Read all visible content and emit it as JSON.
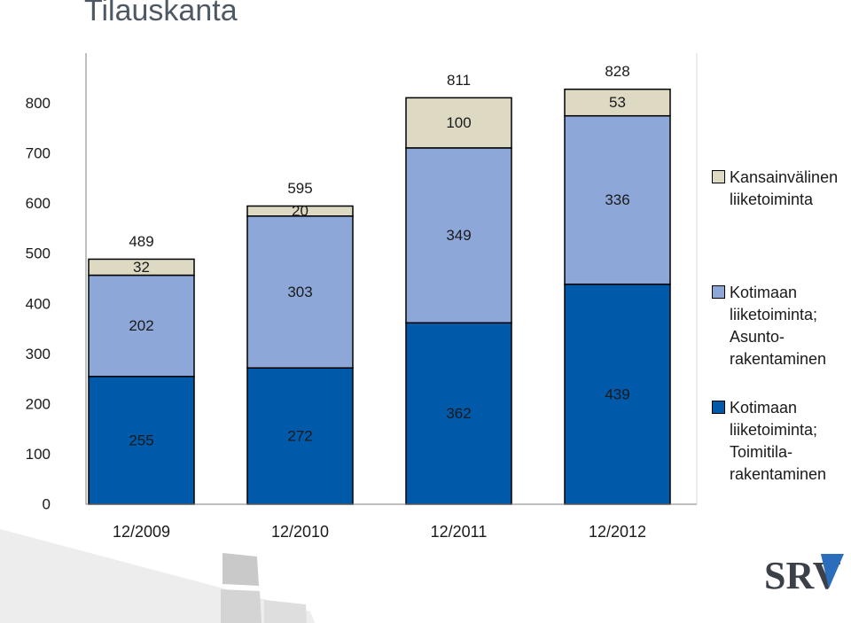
{
  "chart_data": {
    "type": "bar",
    "stacked": true,
    "title": "Tilauskanta",
    "xlabel": "",
    "ylabel": "",
    "categories": [
      "12/2009",
      "12/2010",
      "12/2011",
      "12/2012"
    ],
    "series": [
      {
        "name": "Kotimaan\nliiketoiminta;\nToimitila-\nrakentaminen",
        "color": "#0059a9",
        "values": [
          255,
          272,
          362,
          439
        ]
      },
      {
        "name": "Kotimaan\nliiketoiminta;\nAsunto-\nrakentaminen",
        "color": "#8da7d8",
        "values": [
          202,
          303,
          349,
          336
        ]
      },
      {
        "name": "Kansainvälinen\nliiketoiminta",
        "color": "#ddd9c3",
        "values": [
          32,
          20,
          100,
          53
        ]
      }
    ],
    "totals": [
      489,
      595,
      811,
      828
    ],
    "yticks": [
      0,
      100,
      200,
      300,
      400,
      500,
      600,
      700,
      800
    ],
    "ylim": [
      0,
      900
    ],
    "grid": false,
    "legend": "right",
    "data_labels": true
  },
  "logo": {
    "text": "SRV",
    "accent_color": "#2a6dbb"
  }
}
